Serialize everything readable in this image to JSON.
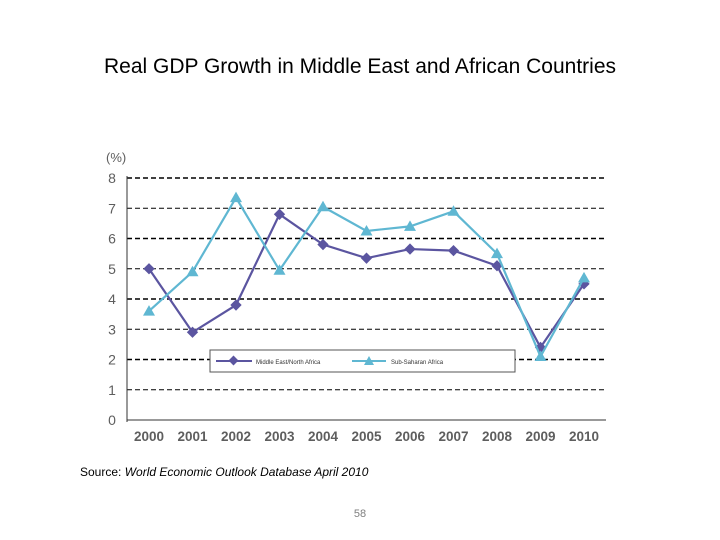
{
  "title": "Real GDP Growth in Middle East and African Countries",
  "source_label": "Source:",
  "source_text": "World Economic Outlook Database April 2010",
  "page_number": "58",
  "colors": {
    "series_mena": "#5b55a0",
    "series_ssa": "#5fb7d2",
    "grid": "#000000",
    "axis_text": "#5e5e5e"
  },
  "chart_data": {
    "type": "line",
    "title": "Real GDP Growth in Middle East and African Countries",
    "ylabel": "(%)",
    "xlabel": "",
    "ylim": [
      0,
      8
    ],
    "yticks": [
      "0",
      "1",
      "2",
      "3",
      "4",
      "5",
      "6",
      "7",
      "8"
    ],
    "categories": [
      "2000",
      "2001",
      "2002",
      "2003",
      "2004",
      "2005",
      "2006",
      "2007",
      "2008",
      "2009",
      "2010"
    ],
    "legend_position": "lower-middle",
    "grid": true,
    "series": [
      {
        "name": "Middle East/North Africa",
        "marker": "diamond",
        "values": [
          5.0,
          2.9,
          3.8,
          6.8,
          5.8,
          5.35,
          5.65,
          5.6,
          5.1,
          2.4,
          4.5
        ]
      },
      {
        "name": "Sub-Saharan Africa",
        "marker": "triangle",
        "values": [
          3.6,
          4.9,
          7.35,
          4.95,
          7.05,
          6.25,
          6.4,
          6.9,
          5.5,
          2.1,
          4.7
        ]
      }
    ]
  }
}
